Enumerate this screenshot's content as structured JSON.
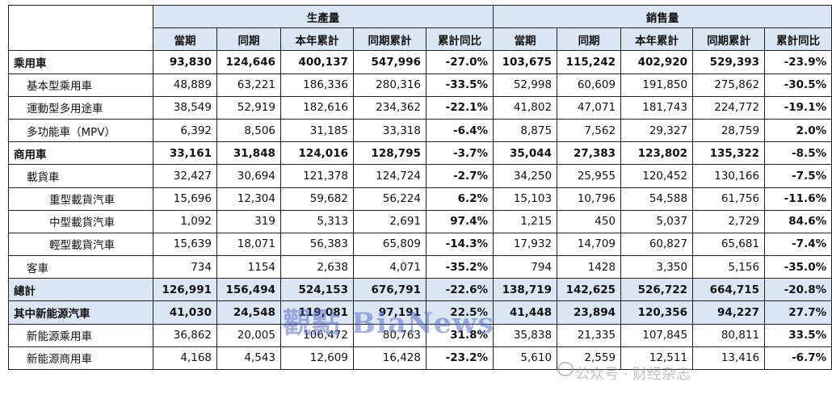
{
  "header": {
    "group_production": "生產量",
    "group_sales": "銷售量",
    "columns": [
      "當期",
      "同期",
      "本年累計",
      "同期累計",
      "累計同比",
      "當期",
      "同期",
      "本年累計",
      "同期累計",
      "累計同比"
    ]
  },
  "rows": [
    {
      "label": "乘用車",
      "values": [
        "93,830",
        "124,646",
        "400,137",
        "547,996",
        "-27.0%",
        "103,675",
        "115,242",
        "402,920",
        "529,393",
        "-23.9%"
      ]
    },
    {
      "label": "基本型乘用車",
      "values": [
        "48,889",
        "63,221",
        "186,336",
        "280,316",
        "-33.5%",
        "52,998",
        "60,609",
        "191,850",
        "275,862",
        "-30.5%"
      ]
    },
    {
      "label": "運動型多用途車",
      "values": [
        "38,549",
        "52,919",
        "182,616",
        "234,362",
        "-22.1%",
        "41,802",
        "47,071",
        "181,743",
        "224,772",
        "-19.1%"
      ]
    },
    {
      "label": "多功能車（MPV）",
      "values": [
        "6,392",
        "8,506",
        "31,185",
        "33,318",
        "-6.4%",
        "8,875",
        "7,562",
        "29,327",
        "28,759",
        "2.0%"
      ]
    },
    {
      "label": "商用車",
      "values": [
        "33,161",
        "31,848",
        "124,016",
        "128,795",
        "-3.7%",
        "35,044",
        "27,383",
        "123,802",
        "135,322",
        "-8.5%"
      ]
    },
    {
      "label": "載貨車",
      "values": [
        "32,427",
        "30,694",
        "121,378",
        "124,724",
        "-2.7%",
        "34,250",
        "25,955",
        "120,452",
        "130,166",
        "-7.5%"
      ]
    },
    {
      "label": "重型載貨汽車",
      "values": [
        "15,696",
        "12,304",
        "59,682",
        "56,224",
        "6.2%",
        "15,103",
        "10,796",
        "54,588",
        "61,756",
        "-11.6%"
      ]
    },
    {
      "label": "中型載貨汽車",
      "values": [
        "1,092",
        "319",
        "5,313",
        "2,691",
        "97.4%",
        "1,215",
        "450",
        "5,037",
        "2,729",
        "84.6%"
      ]
    },
    {
      "label": "輕型載貨汽車",
      "values": [
        "15,639",
        "18,071",
        "56,383",
        "65,809",
        "-14.3%",
        "17,932",
        "14,709",
        "60,827",
        "65,681",
        "-7.4%"
      ]
    },
    {
      "label": "客車",
      "values": [
        "734",
        "1154",
        "2,638",
        "4,071",
        "-35.2%",
        "794",
        "1428",
        "3,350",
        "5,156",
        "-35.0%"
      ]
    },
    {
      "label": "總計",
      "values": [
        "126,991",
        "156,494",
        "524,153",
        "676,791",
        "-22.6%",
        "138,719",
        "142,625",
        "526,722",
        "664,715",
        "-20.8%"
      ]
    },
    {
      "label": "其中新能源汽車",
      "values": [
        "41,030",
        "24,548",
        "119,081",
        "97,191",
        "22.5%",
        "41,448",
        "23,894",
        "120,356",
        "94,227",
        "27.7%"
      ]
    },
    {
      "label": "新能源乘用車",
      "values": [
        "36,862",
        "20,005",
        "106,472",
        "80,763",
        "31.8%",
        "35,838",
        "21,335",
        "107,845",
        "80,811",
        "33.5%"
      ]
    },
    {
      "label": "新能源商用車",
      "values": [
        "4,168",
        "4,543",
        "12,609",
        "16,428",
        "-23.2%",
        "5,610",
        "2,559",
        "12,511",
        "13,416",
        "-6.7%"
      ]
    }
  ],
  "watermark": {
    "main": "觀點 BiaNews",
    "sub": "公众号 · 财经杂志"
  },
  "colors": {
    "header_fill": "#dbe6f4",
    "highlight_fill": "#dbe6f4"
  }
}
